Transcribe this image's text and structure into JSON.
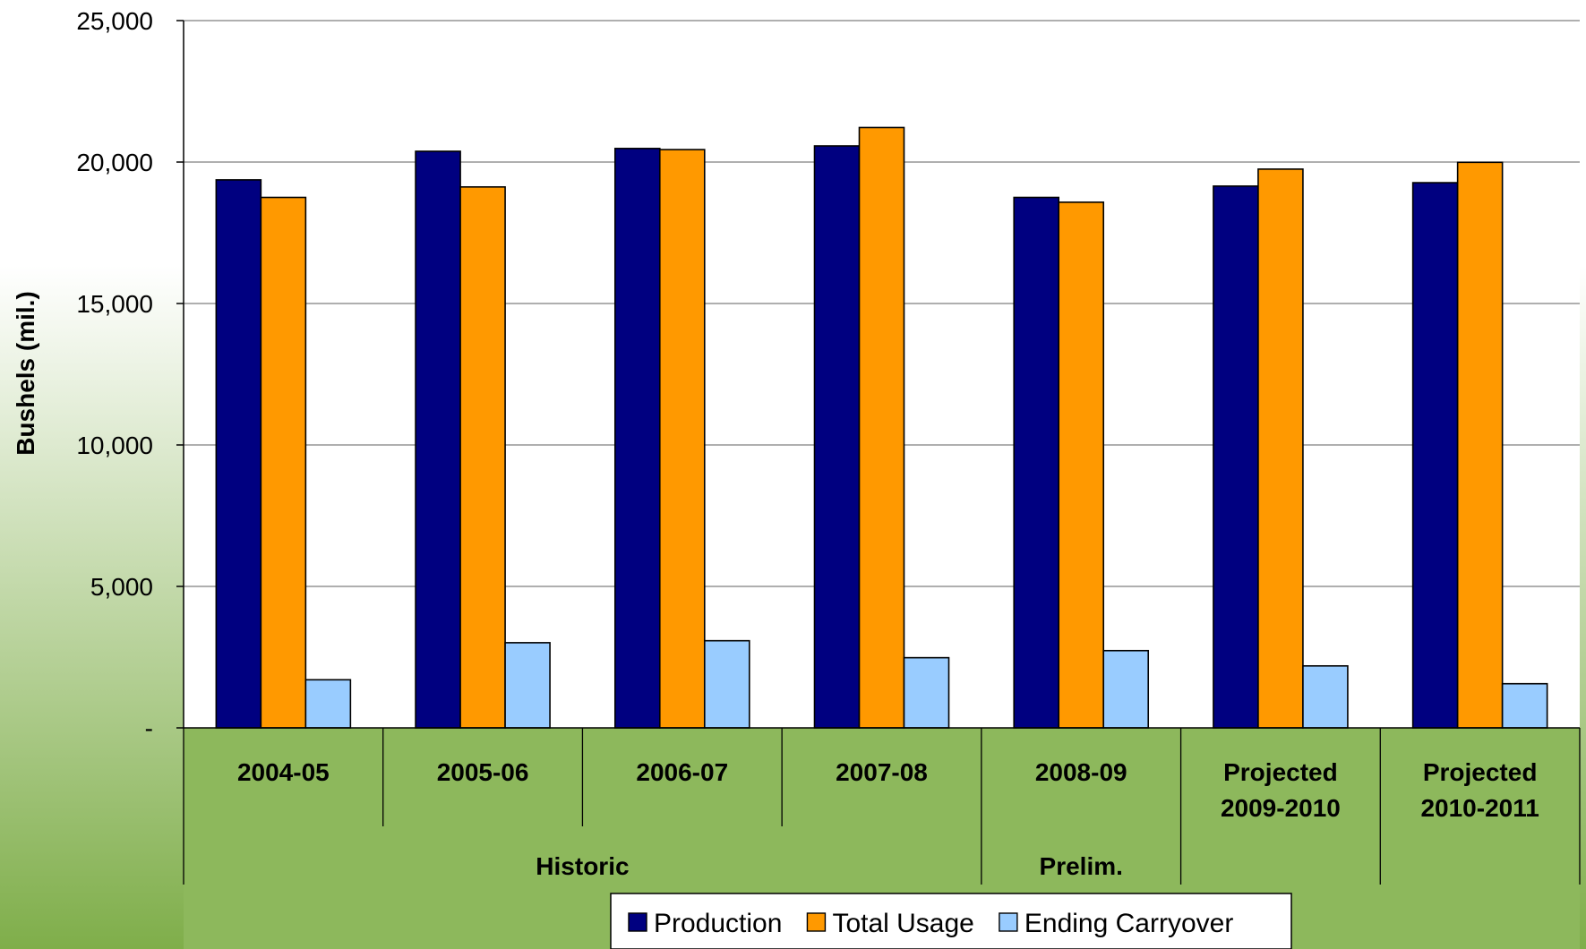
{
  "chart_data": {
    "type": "bar",
    "ylabel": "Bushels (mil.)",
    "ylim": [
      0,
      25000
    ],
    "yticks": [
      0,
      5000,
      10000,
      15000,
      20000,
      25000
    ],
    "ytick_labels": [
      "-",
      "5,000",
      "10,000",
      "15,000",
      "20,000",
      "25,000"
    ],
    "grid": true,
    "categories": [
      [
        "2004-05"
      ],
      [
        "2005-06"
      ],
      [
        "2006-07"
      ],
      [
        "2007-08"
      ],
      [
        "2008-09"
      ],
      [
        "Projected",
        "2009-2010"
      ],
      [
        "Projected",
        "2010-2011"
      ]
    ],
    "groups": [
      {
        "label": "Historic",
        "span": [
          0,
          3
        ]
      },
      {
        "label": "Prelim.",
        "span": [
          4,
          4
        ]
      },
      {
        "label": "",
        "span": [
          5,
          5
        ]
      },
      {
        "label": "",
        "span": [
          6,
          6
        ]
      }
    ],
    "series": [
      {
        "name": "Production",
        "color": "#000080",
        "values": [
          19370,
          20380,
          20480,
          20570,
          18750,
          19150,
          19270
        ]
      },
      {
        "name": "Total Usage",
        "color": "#FF9900",
        "values": [
          18750,
          19120,
          20440,
          21220,
          18580,
          19750,
          19990
        ]
      },
      {
        "name": "Ending Carryover",
        "color": "#99CCFF",
        "values": [
          1700,
          3010,
          3080,
          2480,
          2730,
          2190,
          1560
        ]
      }
    ],
    "legend_position": "bottom"
  },
  "colors": {
    "plot_background": "#FFFFFF",
    "page_gradient_top": "#FFFFFF",
    "page_gradient_bottom": "#7FAE4A",
    "category_band": "#8DB85C"
  }
}
